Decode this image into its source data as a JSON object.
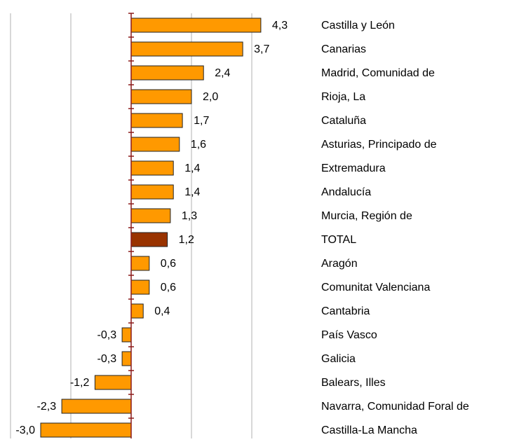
{
  "chart_data": {
    "type": "hbar",
    "categories": [
      "Castilla y León",
      "Canarias",
      "Madrid, Comunidad de",
      "Rioja, La",
      "Cataluña",
      "Asturias, Principado de",
      "Extremadura",
      "Andalucía",
      "Murcia, Región de",
      "TOTAL",
      "Aragón",
      "Comunitat Valenciana",
      "Cantabria",
      "País Vasco",
      "Galicia",
      "Balears, Illes",
      "Navarra, Comunidad Foral de",
      "Castilla-La Mancha"
    ],
    "values": [
      4.3,
      3.7,
      2.4,
      2.0,
      1.7,
      1.6,
      1.4,
      1.4,
      1.3,
      1.2,
      0.6,
      0.6,
      0.4,
      -0.3,
      -0.3,
      -1.2,
      -2.3,
      -3.0
    ],
    "value_labels": [
      "4,3",
      "3,7",
      "2,4",
      "2,0",
      "1,7",
      "1,6",
      "1,4",
      "1,4",
      "1,3",
      "1,2",
      "0,6",
      "0,6",
      "0,4",
      "-0,3",
      "-0,3",
      "-1,2",
      "-2,3",
      "-3,0"
    ],
    "colors": [
      "#ff9900",
      "#ff9900",
      "#ff9900",
      "#ff9900",
      "#ff9900",
      "#ff9900",
      "#ff9900",
      "#ff9900",
      "#ff9900",
      "#993300",
      "#ff9900",
      "#ff9900",
      "#ff9900",
      "#ff9900",
      "#ff9900",
      "#ff9900",
      "#ff9900",
      "#ff9900"
    ],
    "xlim": [
      -4,
      6
    ],
    "xgrid": [
      -4,
      -2,
      0,
      2,
      4
    ],
    "grid": true
  }
}
